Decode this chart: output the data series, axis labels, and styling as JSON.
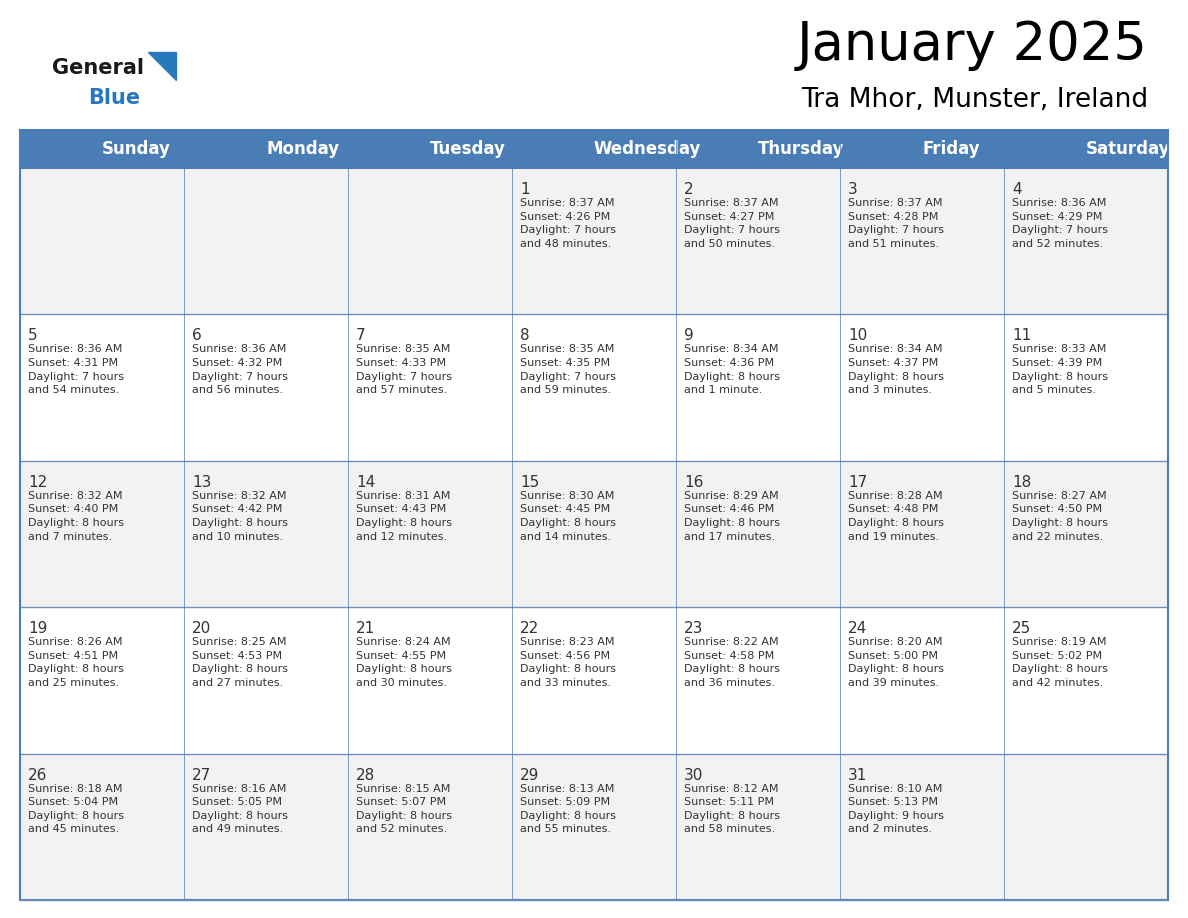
{
  "title": "January 2025",
  "subtitle": "Tra Mhor, Munster, Ireland",
  "days_of_week": [
    "Sunday",
    "Monday",
    "Tuesday",
    "Wednesday",
    "Thursday",
    "Friday",
    "Saturday"
  ],
  "header_bg": "#4A7DB5",
  "header_text": "#FFFFFF",
  "row_bg_light": "#F2F2F2",
  "row_bg_white": "#FFFFFF",
  "border_color": "#4A7DB5",
  "row_border_color": "#A0A0C0",
  "text_color": "#333333",
  "logo_general_color": "#1A1A1A",
  "logo_blue_color": "#2878BE",
  "calendar_data": [
    [
      null,
      null,
      null,
      {
        "day": 1,
        "sunrise": "8:37 AM",
        "sunset": "4:26 PM",
        "daylight": "7 hours\nand 48 minutes."
      },
      {
        "day": 2,
        "sunrise": "8:37 AM",
        "sunset": "4:27 PM",
        "daylight": "7 hours\nand 50 minutes."
      },
      {
        "day": 3,
        "sunrise": "8:37 AM",
        "sunset": "4:28 PM",
        "daylight": "7 hours\nand 51 minutes."
      },
      {
        "day": 4,
        "sunrise": "8:36 AM",
        "sunset": "4:29 PM",
        "daylight": "7 hours\nand 52 minutes."
      }
    ],
    [
      {
        "day": 5,
        "sunrise": "8:36 AM",
        "sunset": "4:31 PM",
        "daylight": "7 hours\nand 54 minutes."
      },
      {
        "day": 6,
        "sunrise": "8:36 AM",
        "sunset": "4:32 PM",
        "daylight": "7 hours\nand 56 minutes."
      },
      {
        "day": 7,
        "sunrise": "8:35 AM",
        "sunset": "4:33 PM",
        "daylight": "7 hours\nand 57 minutes."
      },
      {
        "day": 8,
        "sunrise": "8:35 AM",
        "sunset": "4:35 PM",
        "daylight": "7 hours\nand 59 minutes."
      },
      {
        "day": 9,
        "sunrise": "8:34 AM",
        "sunset": "4:36 PM",
        "daylight": "8 hours\nand 1 minute."
      },
      {
        "day": 10,
        "sunrise": "8:34 AM",
        "sunset": "4:37 PM",
        "daylight": "8 hours\nand 3 minutes."
      },
      {
        "day": 11,
        "sunrise": "8:33 AM",
        "sunset": "4:39 PM",
        "daylight": "8 hours\nand 5 minutes."
      }
    ],
    [
      {
        "day": 12,
        "sunrise": "8:32 AM",
        "sunset": "4:40 PM",
        "daylight": "8 hours\nand 7 minutes."
      },
      {
        "day": 13,
        "sunrise": "8:32 AM",
        "sunset": "4:42 PM",
        "daylight": "8 hours\nand 10 minutes."
      },
      {
        "day": 14,
        "sunrise": "8:31 AM",
        "sunset": "4:43 PM",
        "daylight": "8 hours\nand 12 minutes."
      },
      {
        "day": 15,
        "sunrise": "8:30 AM",
        "sunset": "4:45 PM",
        "daylight": "8 hours\nand 14 minutes."
      },
      {
        "day": 16,
        "sunrise": "8:29 AM",
        "sunset": "4:46 PM",
        "daylight": "8 hours\nand 17 minutes."
      },
      {
        "day": 17,
        "sunrise": "8:28 AM",
        "sunset": "4:48 PM",
        "daylight": "8 hours\nand 19 minutes."
      },
      {
        "day": 18,
        "sunrise": "8:27 AM",
        "sunset": "4:50 PM",
        "daylight": "8 hours\nand 22 minutes."
      }
    ],
    [
      {
        "day": 19,
        "sunrise": "8:26 AM",
        "sunset": "4:51 PM",
        "daylight": "8 hours\nand 25 minutes."
      },
      {
        "day": 20,
        "sunrise": "8:25 AM",
        "sunset": "4:53 PM",
        "daylight": "8 hours\nand 27 minutes."
      },
      {
        "day": 21,
        "sunrise": "8:24 AM",
        "sunset": "4:55 PM",
        "daylight": "8 hours\nand 30 minutes."
      },
      {
        "day": 22,
        "sunrise": "8:23 AM",
        "sunset": "4:56 PM",
        "daylight": "8 hours\nand 33 minutes."
      },
      {
        "day": 23,
        "sunrise": "8:22 AM",
        "sunset": "4:58 PM",
        "daylight": "8 hours\nand 36 minutes."
      },
      {
        "day": 24,
        "sunrise": "8:20 AM",
        "sunset": "5:00 PM",
        "daylight": "8 hours\nand 39 minutes."
      },
      {
        "day": 25,
        "sunrise": "8:19 AM",
        "sunset": "5:02 PM",
        "daylight": "8 hours\nand 42 minutes."
      }
    ],
    [
      {
        "day": 26,
        "sunrise": "8:18 AM",
        "sunset": "5:04 PM",
        "daylight": "8 hours\nand 45 minutes."
      },
      {
        "day": 27,
        "sunrise": "8:16 AM",
        "sunset": "5:05 PM",
        "daylight": "8 hours\nand 49 minutes."
      },
      {
        "day": 28,
        "sunrise": "8:15 AM",
        "sunset": "5:07 PM",
        "daylight": "8 hours\nand 52 minutes."
      },
      {
        "day": 29,
        "sunrise": "8:13 AM",
        "sunset": "5:09 PM",
        "daylight": "8 hours\nand 55 minutes."
      },
      {
        "day": 30,
        "sunrise": "8:12 AM",
        "sunset": "5:11 PM",
        "daylight": "8 hours\nand 58 minutes."
      },
      {
        "day": 31,
        "sunrise": "8:10 AM",
        "sunset": "5:13 PM",
        "daylight": "9 hours\nand 2 minutes."
      },
      null
    ]
  ]
}
